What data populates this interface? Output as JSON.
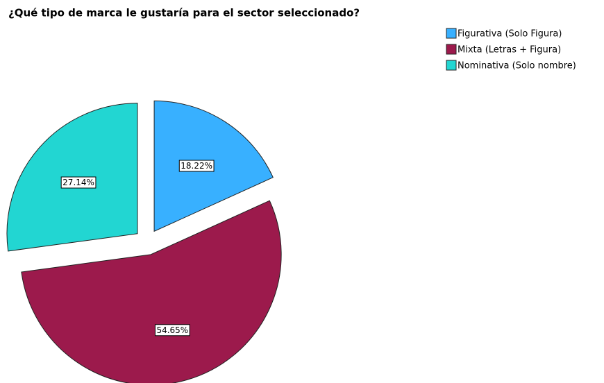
{
  "chart_data": {
    "type": "pie",
    "title": "¿Qué tipo de marca le gustaría para el sector seleccionado?",
    "categories": [
      "Figurativa (Solo Figura)",
      "Mixta (Letras + Figura)",
      "Nominativa (Solo nombre)"
    ],
    "values": [
      18.22,
      54.65,
      27.14
    ],
    "value_labels": [
      "18.22%",
      "54.65%",
      "27.14%"
    ],
    "colors": [
      "#38b0ff",
      "#9c1a4c",
      "#22d6d2"
    ],
    "legend": "top-right"
  }
}
